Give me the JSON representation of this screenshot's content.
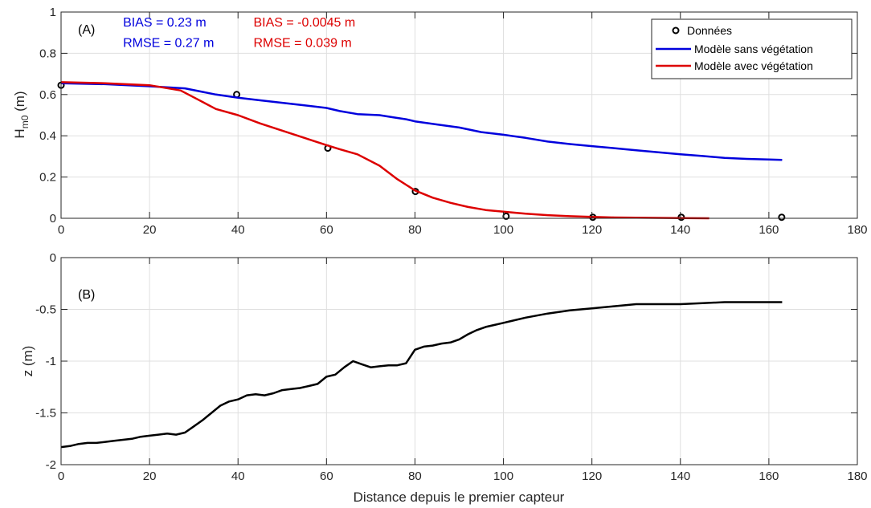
{
  "chart_data": [
    {
      "type": "line",
      "panel_label": "(A)",
      "xlabel": "",
      "ylabel": "H",
      "ylabel_sub": "m0",
      "ylabel_unit": " (m)",
      "xlim": [
        0,
        180
      ],
      "ylim": [
        0,
        1
      ],
      "xticks": [
        0,
        20,
        40,
        60,
        80,
        100,
        120,
        140,
        160,
        180
      ],
      "yticks": [
        0,
        0.2,
        0.4,
        0.6,
        0.8,
        1
      ],
      "ytick_labels": [
        "0",
        "0.2",
        "0.4",
        "0.6",
        "0.8",
        "1"
      ],
      "grid": true,
      "legend_position": "top-right",
      "annotations": [
        {
          "text": "BIAS = 0.23 m",
          "color": "#0000dd",
          "x": 14,
          "y": 0.93
        },
        {
          "text": "RMSE = 0.27 m",
          "color": "#0000dd",
          "x": 14,
          "y": 0.83
        },
        {
          "text": "BIAS = -0.0045 m",
          "color": "#dd0000",
          "x": 43.5,
          "y": 0.93
        },
        {
          "text": "RMSE = 0.039 m",
          "color": "#dd0000",
          "x": 43.5,
          "y": 0.83
        }
      ],
      "series": [
        {
          "name": "Données",
          "kind": "markers",
          "color": "#000000",
          "x": [
            0,
            39.7,
            60.3,
            80.1,
            100.6,
            120.2,
            140.2,
            162.9
          ],
          "y": [
            0.645,
            0.6,
            0.34,
            0.13,
            0.01,
            0.005,
            0.005,
            0.005
          ]
        },
        {
          "name": "Modèle sans végétation",
          "kind": "line",
          "color": "#0000dd",
          "x": [
            0,
            10,
            20,
            28,
            35,
            40,
            45,
            50,
            55,
            60,
            63,
            67,
            72,
            75,
            78,
            80,
            85,
            90,
            95,
            100,
            105,
            110,
            115,
            120,
            125,
            130,
            135,
            140,
            145,
            150,
            155,
            160,
            163
          ],
          "y": [
            0.655,
            0.65,
            0.64,
            0.63,
            0.6,
            0.585,
            0.572,
            0.56,
            0.548,
            0.535,
            0.52,
            0.505,
            0.5,
            0.49,
            0.48,
            0.47,
            0.455,
            0.44,
            0.418,
            0.405,
            0.39,
            0.372,
            0.36,
            0.35,
            0.34,
            0.33,
            0.32,
            0.31,
            0.302,
            0.293,
            0.288,
            0.285,
            0.283
          ]
        },
        {
          "name": "Modèle avec végétation",
          "kind": "line",
          "color": "#dd0000",
          "x": [
            0,
            10,
            20,
            27,
            31,
            35,
            40,
            45,
            50,
            55,
            60,
            63,
            67,
            72,
            76,
            80,
            84,
            88,
            92,
            96,
            100,
            105,
            110,
            115,
            120,
            125,
            130,
            135,
            140,
            146.5
          ],
          "y": [
            0.66,
            0.655,
            0.645,
            0.62,
            0.575,
            0.53,
            0.5,
            0.46,
            0.425,
            0.39,
            0.355,
            0.335,
            0.31,
            0.255,
            0.19,
            0.135,
            0.1,
            0.075,
            0.055,
            0.04,
            0.032,
            0.022,
            0.015,
            0.01,
            0.007,
            0.004,
            0.003,
            0.002,
            0.001,
            0.0
          ]
        }
      ]
    },
    {
      "type": "line",
      "panel_label": "(B)",
      "xlabel": "Distance depuis le premier capteur",
      "ylabel": "z (m)",
      "xlim": [
        0,
        180
      ],
      "ylim": [
        -2,
        0
      ],
      "xticks": [
        0,
        20,
        40,
        60,
        80,
        100,
        120,
        140,
        160,
        180
      ],
      "yticks": [
        -2,
        -1.5,
        -1,
        -0.5,
        0
      ],
      "ytick_labels": [
        "-2",
        "-1.5",
        "-1",
        "-0.5",
        "0"
      ],
      "grid": true,
      "series": [
        {
          "name": "",
          "kind": "line",
          "color": "#000000",
          "x": [
            0,
            2,
            4,
            6,
            8,
            10,
            12,
            14,
            16,
            18,
            20,
            22,
            24,
            26,
            28,
            30,
            32,
            34,
            36,
            38,
            40,
            42,
            44,
            46,
            48,
            50,
            52,
            54,
            56,
            58,
            60,
            62,
            64,
            66,
            68,
            70,
            72,
            74,
            76,
            78,
            80,
            82,
            84,
            86,
            88,
            90,
            92,
            94,
            96,
            98,
            100,
            105,
            110,
            115,
            120,
            125,
            130,
            135,
            140,
            145,
            150,
            155,
            160,
            163
          ],
          "y": [
            -1.83,
            -1.82,
            -1.8,
            -1.79,
            -1.79,
            -1.78,
            -1.77,
            -1.76,
            -1.75,
            -1.73,
            -1.72,
            -1.71,
            -1.7,
            -1.71,
            -1.69,
            -1.63,
            -1.57,
            -1.5,
            -1.43,
            -1.39,
            -1.37,
            -1.33,
            -1.32,
            -1.33,
            -1.31,
            -1.28,
            -1.27,
            -1.26,
            -1.24,
            -1.22,
            -1.15,
            -1.13,
            -1.06,
            -1.0,
            -1.03,
            -1.06,
            -1.05,
            -1.04,
            -1.04,
            -1.02,
            -0.89,
            -0.86,
            -0.85,
            -0.83,
            -0.82,
            -0.79,
            -0.74,
            -0.7,
            -0.67,
            -0.65,
            -0.63,
            -0.58,
            -0.54,
            -0.51,
            -0.49,
            -0.47,
            -0.45,
            -0.45,
            -0.45,
            -0.44,
            -0.43,
            -0.43,
            -0.43,
            -0.43
          ]
        }
      ]
    }
  ]
}
